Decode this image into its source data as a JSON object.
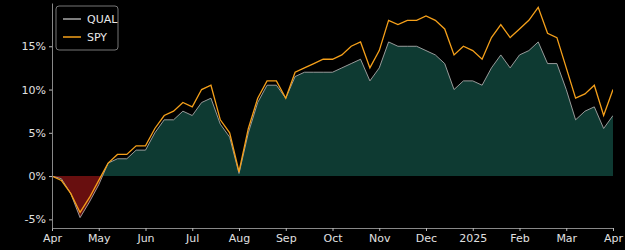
{
  "chart_data": {
    "type": "line",
    "categories": [
      "Apr",
      null,
      null,
      null,
      null,
      "May",
      null,
      null,
      null,
      null,
      "Jun",
      null,
      null,
      null,
      null,
      "Jul",
      null,
      null,
      null,
      null,
      "Aug",
      null,
      null,
      null,
      null,
      "Sep",
      null,
      null,
      null,
      null,
      "Oct",
      null,
      null,
      null,
      null,
      "Nov",
      null,
      null,
      null,
      null,
      "Dec",
      null,
      null,
      null,
      null,
      "2025",
      null,
      null,
      null,
      null,
      "Feb",
      null,
      null,
      null,
      null,
      "Mar",
      null,
      null,
      null,
      null,
      "Apr"
    ],
    "series": [
      {
        "name": "QUAL",
        "type": "area",
        "color": "#a8a8a8",
        "values": [
          0,
          -0.3,
          -2,
          -4.8,
          -3,
          -1,
          1.5,
          2,
          2,
          3,
          3,
          5,
          6.5,
          6.5,
          7.5,
          7,
          8.5,
          9,
          6,
          4.5,
          0.3,
          5,
          8.5,
          10.5,
          10.5,
          9,
          11.5,
          12,
          12,
          12,
          12,
          12.5,
          13,
          13.5,
          11,
          12.5,
          15.5,
          15,
          15,
          15,
          14.5,
          14,
          13,
          10,
          11,
          11,
          10.5,
          12.5,
          14,
          12.5,
          14,
          14.5,
          15.5,
          13,
          13,
          10,
          6.5,
          7.5,
          8,
          5.5,
          7
        ]
      },
      {
        "name": "SPY",
        "type": "line",
        "color": "#f5a01a",
        "values": [
          0,
          -0.5,
          -2,
          -4.2,
          -2.5,
          -0.5,
          1.5,
          2.5,
          2.5,
          3.5,
          3.5,
          5.5,
          7,
          7.5,
          8.5,
          8,
          10,
          10.5,
          6.5,
          5,
          0.5,
          5.5,
          9,
          11,
          11,
          9,
          12,
          12.5,
          13,
          13.5,
          13.5,
          14,
          15,
          15.5,
          12.5,
          14.5,
          18,
          17.5,
          18,
          18,
          18.5,
          18,
          17,
          14,
          15,
          14.5,
          13.5,
          16,
          17.5,
          16,
          17,
          18,
          19.5,
          16.5,
          16,
          12.5,
          9,
          9.5,
          10.5,
          7,
          10
        ]
      }
    ],
    "ylim": [
      -6,
      20
    ],
    "yticks": [
      {
        "value": -5,
        "label": "-5%"
      },
      {
        "value": 0,
        "label": "0%"
      },
      {
        "value": 5,
        "label": "5%"
      },
      {
        "value": 10,
        "label": "10%"
      },
      {
        "value": 15,
        "label": "15%"
      }
    ],
    "legend": "upper left"
  }
}
